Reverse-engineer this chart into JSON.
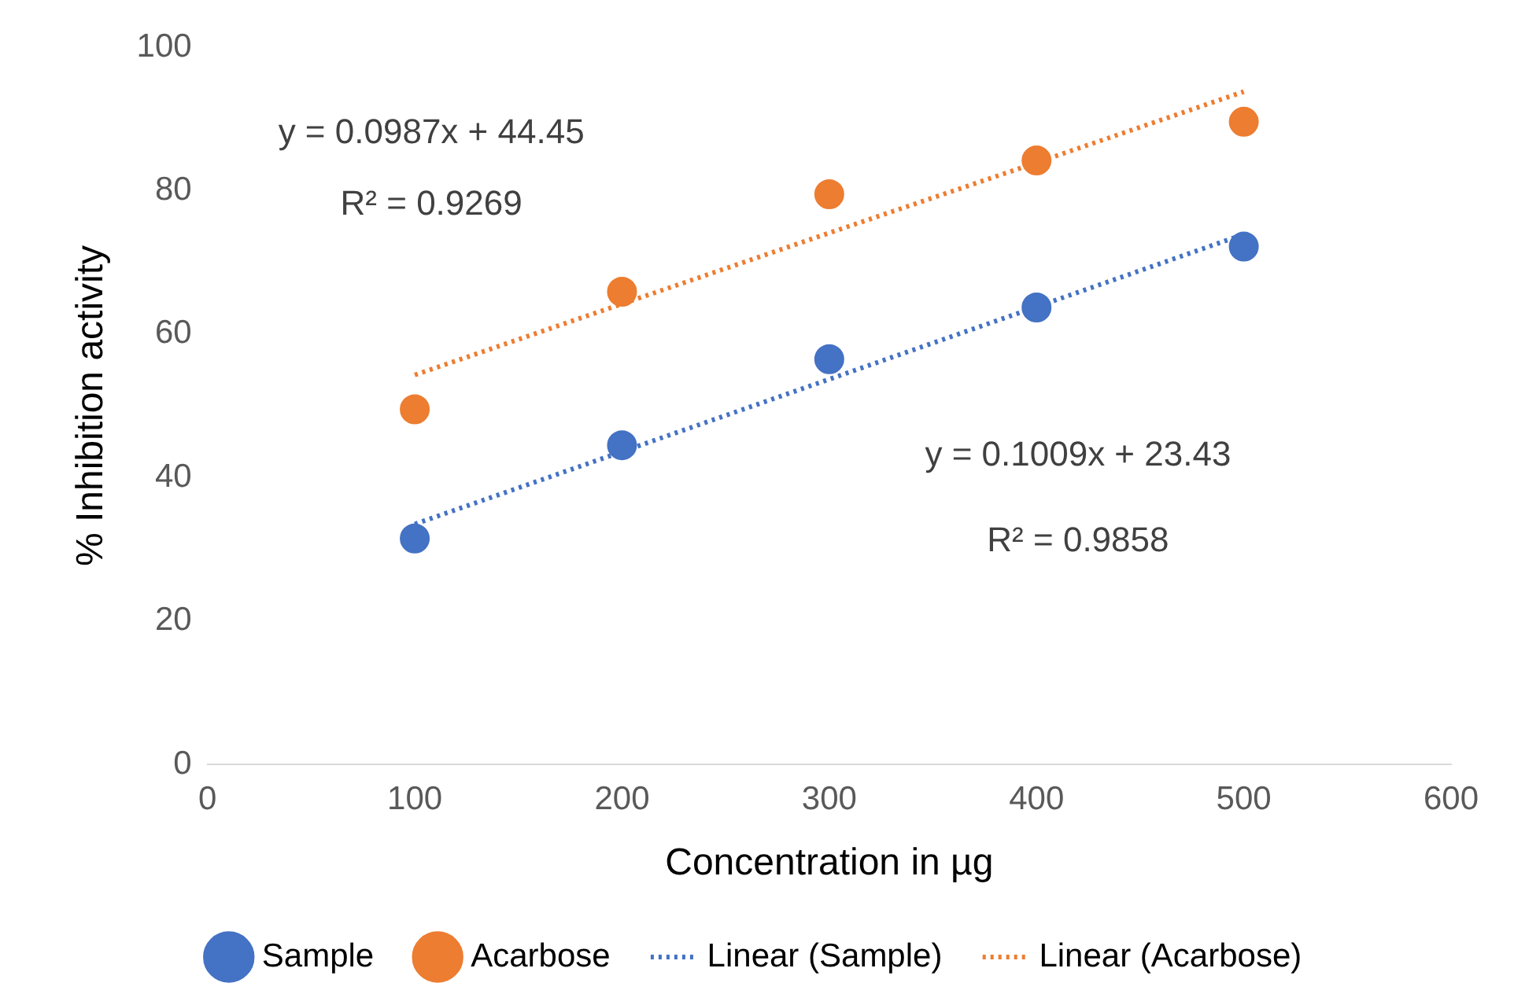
{
  "chart_data": {
    "type": "scatter",
    "xlabel": "Concentration in µg",
    "ylabel": "% Inhibition activity",
    "x": [
      100,
      200,
      300,
      400,
      500
    ],
    "series": [
      {
        "name": "Sample",
        "color": "#4472c4",
        "values": [
          31.5,
          44.5,
          56.5,
          63.7,
          72.2
        ]
      },
      {
        "name": "Acarbose",
        "color": "#ed7d31",
        "values": [
          49.5,
          65.9,
          79.5,
          84.2,
          89.6
        ]
      },
      {
        "name": "Linear (Sample)",
        "type": "line",
        "color": "#4472c4",
        "values": [
          33.5,
          43.6,
          53.7,
          63.8,
          73.9
        ],
        "line_style": "dotted",
        "marker": "none"
      },
      {
        "name": "Linear (Acarbose)",
        "type": "line",
        "color": "#ed7d31",
        "values": [
          54.3,
          64.2,
          74.1,
          83.9,
          93.8
        ],
        "line_style": "dotted",
        "marker": "none"
      }
    ],
    "annotations": [
      "y = 0.0987x + 44.45",
      "R² = 0.9269",
      "y = 0.1009x + 23.43",
      "R² = 0.9858"
    ],
    "marker": "circle",
    "xlim": [
      0,
      600
    ],
    "xticks": [
      0,
      100,
      200,
      300,
      400,
      500,
      600
    ],
    "ylim": [
      0,
      100
    ],
    "yticks": [
      0,
      20,
      40,
      60,
      80,
      100
    ],
    "grid": false,
    "legend": "bottom"
  }
}
